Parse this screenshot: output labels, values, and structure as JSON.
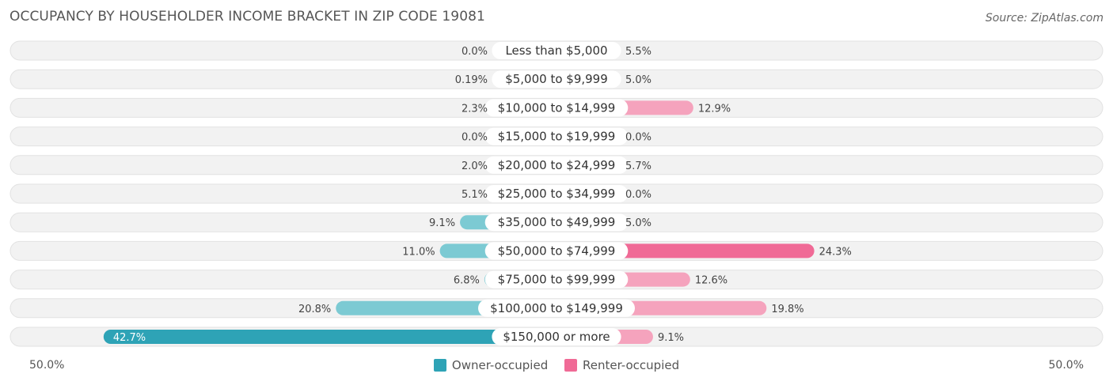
{
  "header": {
    "title": "OCCUPANCY BY HOUSEHOLDER INCOME BRACKET IN ZIP CODE 19081",
    "source": "Source: ZipAtlas.com"
  },
  "axis": {
    "left_label": "50.0%",
    "right_label": "50.0%"
  },
  "colors": {
    "owner": "#7ccad3",
    "owner_strong": "#2ea3b6",
    "renter": "#f5a3bd",
    "renter_strong": "#f06a96",
    "row_bg": "#f2f2f2",
    "row_border": "#e2e2e2"
  },
  "chart_data": {
    "type": "bar",
    "orientation": "horizontal-diverging",
    "title": "OCCUPANCY BY HOUSEHOLDER INCOME BRACKET IN ZIP CODE 19081",
    "categories": [
      "Less than $5,000",
      "$5,000 to $9,999",
      "$10,000 to $14,999",
      "$15,000 to $19,999",
      "$20,000 to $24,999",
      "$25,000 to $34,999",
      "$35,000 to $49,999",
      "$50,000 to $74,999",
      "$75,000 to $99,999",
      "$100,000 to $149,999",
      "$150,000 or more"
    ],
    "series": [
      {
        "name": "Owner-occupied",
        "values": [
          0.0,
          0.19,
          2.3,
          0.0,
          2.0,
          5.1,
          9.1,
          11.0,
          6.8,
          20.8,
          42.7
        ],
        "labels": [
          "0.0%",
          "0.19%",
          "2.3%",
          "0.0%",
          "2.0%",
          "5.1%",
          "9.1%",
          "11.0%",
          "6.8%",
          "20.8%",
          "42.7%"
        ]
      },
      {
        "name": "Renter-occupied",
        "values": [
          5.5,
          5.0,
          12.9,
          0.0,
          5.7,
          0.0,
          5.0,
          24.3,
          12.6,
          19.8,
          9.1
        ],
        "labels": [
          "5.5%",
          "5.0%",
          "12.9%",
          "0.0%",
          "5.7%",
          "0.0%",
          "5.0%",
          "24.3%",
          "12.6%",
          "19.8%",
          "9.1%"
        ]
      }
    ],
    "xlim": [
      -50,
      50
    ],
    "legend_position": "bottom-center",
    "grid": false
  }
}
